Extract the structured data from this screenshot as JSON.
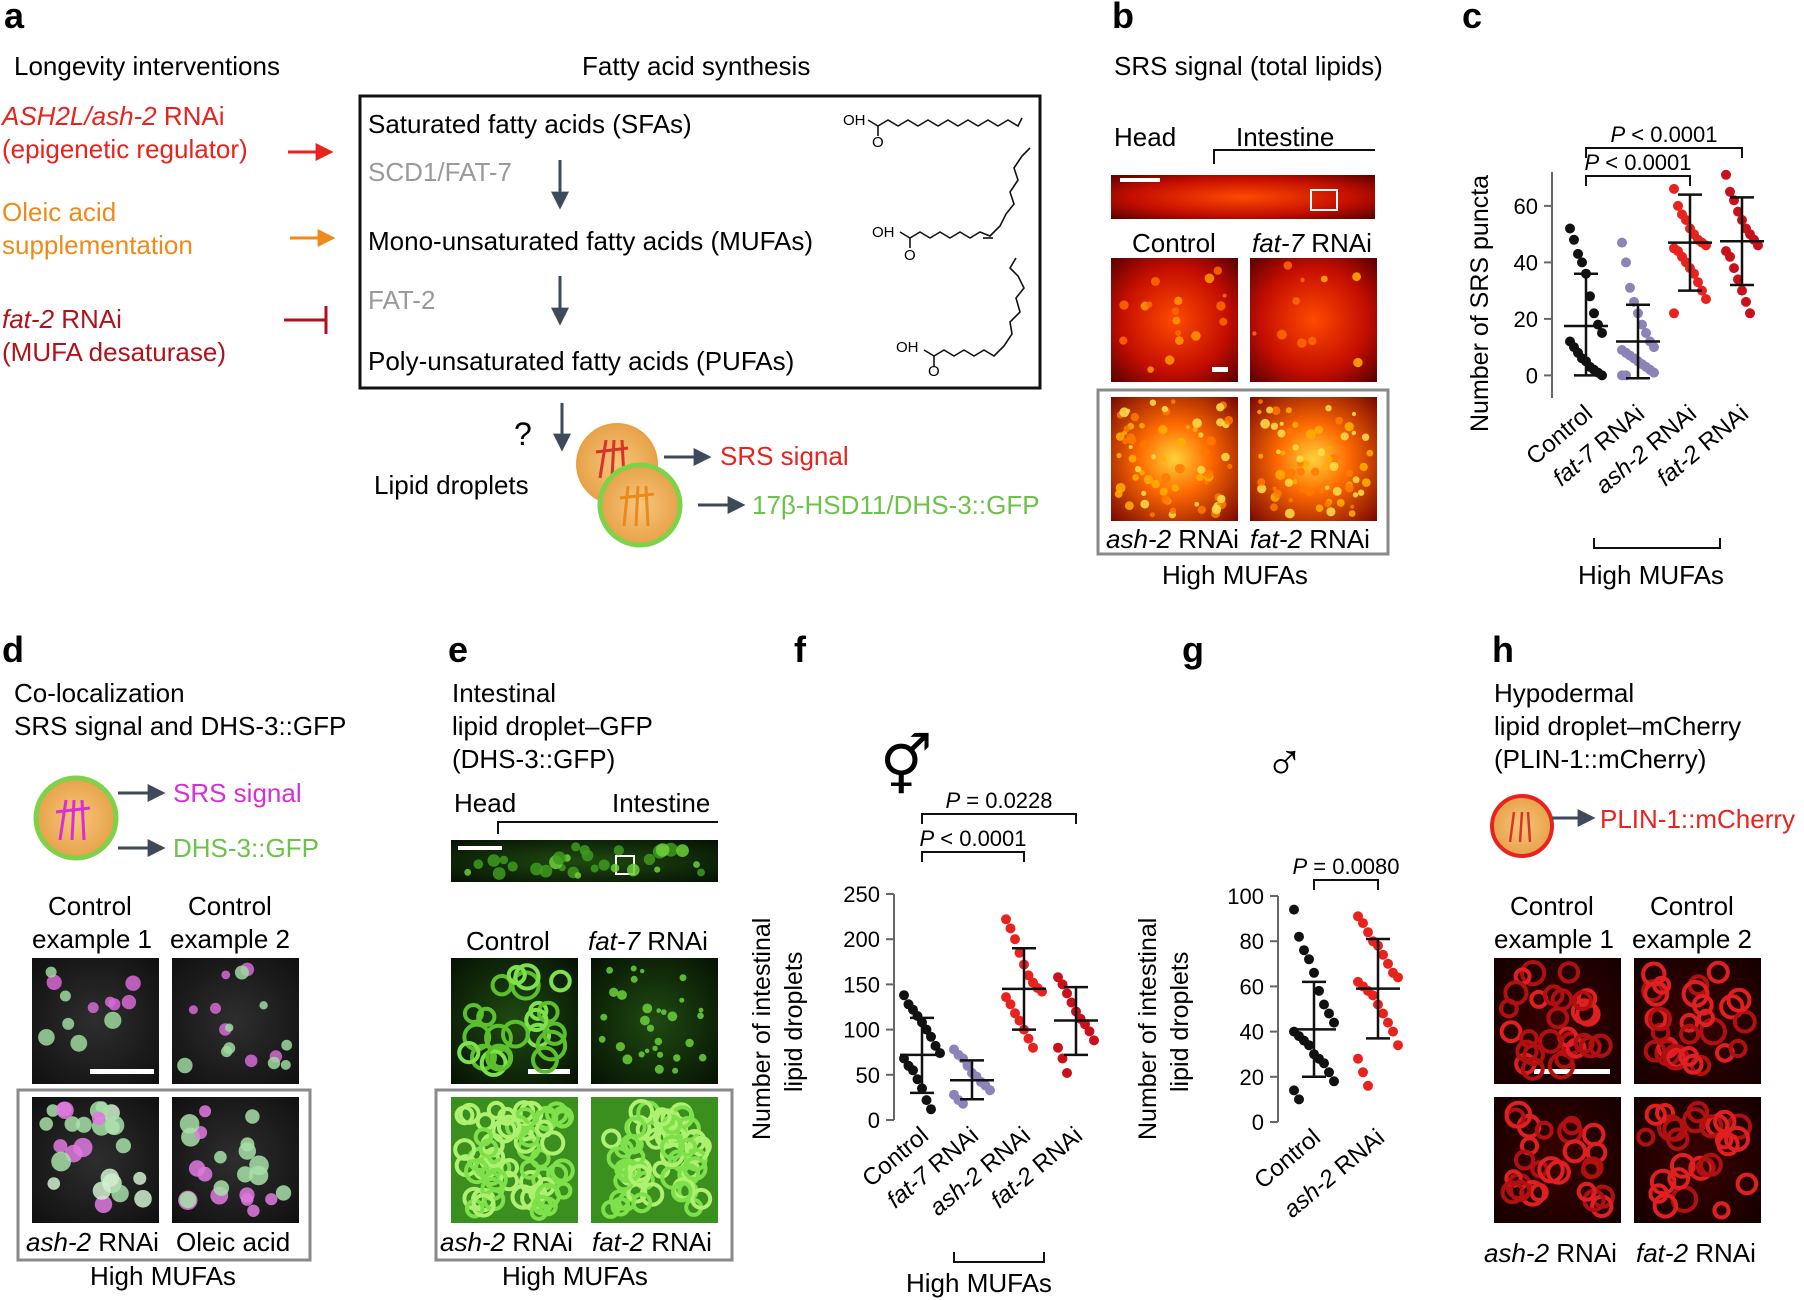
{
  "colors": {
    "red": "#e8231e",
    "orange": "#ef8a1a",
    "darkred": "#b0121b",
    "green": "#6cc24a",
    "gray": "#9a9a9a",
    "magenta": "#d62fd6",
    "purple": "#8c83b8",
    "black": "#111111"
  },
  "panel_a": {
    "label": "a",
    "heading_left": "Longevity interventions",
    "heading_box": "Fatty acid synthesis",
    "int1_gene": "ASH2L/ash-2",
    "int1_suffix": " RNAi",
    "int1_sub": "(epigenetic regulator)",
    "int2_line1": "Oleic acid",
    "int2_line2": "supplementation",
    "int3_gene": "fat-2",
    "int3_suffix": " RNAi",
    "int3_sub": "(MUFA desaturase)",
    "sfa": "Saturated fatty acids (SFAs)",
    "enzyme1": "SCD1/FAT-7",
    "mufa": "Mono-unsaturated fatty acids (MUFAs)",
    "enzyme2": "FAT-2",
    "pufa": "Poly-unsaturated fatty acids (PUFAs)",
    "oh": "OH",
    "o": "O",
    "question": "?",
    "lipid_droplets": "Lipid droplets",
    "srs": "SRS signal",
    "dhs": "17β-HSD11/DHS-3::GFP"
  },
  "panel_b": {
    "label": "b",
    "title": "SRS signal (total lipids)",
    "head": "Head",
    "intestine": "Intestine",
    "control": "Control",
    "fat7": "fat-7",
    "rnai": " RNAi",
    "ash2": "ash-2",
    "fat2": "fat-2",
    "high": "High MUFAs"
  },
  "panel_c": {
    "label": "c",
    "ylabel": "Number of SRS puncta",
    "p1": "P < 0.0001",
    "p2": "P < 0.0001",
    "yticks": [
      "0",
      "20",
      "40",
      "60"
    ],
    "xcats": [
      "Control",
      "fat-7 RNAi",
      "ash-2 RNAi",
      "fat-2 RNAi"
    ],
    "high": "High MUFAs"
  },
  "panel_d": {
    "label": "d",
    "title1": "Co-localization",
    "title2": "SRS signal and DHS-3::GFP",
    "srs": "SRS signal",
    "dhs": "DHS-3::GFP",
    "c1a": "Control",
    "c1b": "example 1",
    "c2a": "Control",
    "c2b": "example 2",
    "ash2": "ash-2",
    "rnai": " RNAi",
    "oleic": "Oleic acid",
    "high": "High MUFAs"
  },
  "panel_e": {
    "label": "e",
    "t1": "Intestinal",
    "t2": "lipid droplet–GFP",
    "t3": "(DHS-3::GFP)",
    "head": "Head",
    "intestine": "Intestine",
    "control": "Control",
    "fat7": "fat-7",
    "rnai": " RNAi",
    "ash2": "ash-2",
    "fat2": "fat-2",
    "high": "High MUFAs"
  },
  "panel_f": {
    "label": "f",
    "symbol": "⚥",
    "ylabel1": "Number of intestinal",
    "ylabel2": "lipid droplets",
    "p1": "P = 0.0228",
    "p2": "P < 0.0001",
    "yticks": [
      "0",
      "50",
      "100",
      "150",
      "200",
      "250"
    ],
    "xcats": [
      "Control",
      "fat-7 RNAi",
      "ash-2 RNAi",
      "fat-2 RNAi"
    ],
    "high": "High MUFAs"
  },
  "panel_g": {
    "label": "g",
    "symbol": "♂",
    "ylabel1": "Number of intestinal",
    "ylabel2": "lipid droplets",
    "p1": "P = 0.0080",
    "yticks": [
      "0",
      "20",
      "40",
      "60",
      "80",
      "100"
    ],
    "xcats": [
      "Control",
      "ash-2 RNAi"
    ]
  },
  "panel_h": {
    "label": "h",
    "t1": "Hypodermal",
    "t2": "lipid droplet–mCherry",
    "t3": "(PLIN-1::mCherry)",
    "plin": "PLIN-1::mCherry",
    "c1a": "Control",
    "c1b": "example 1",
    "c2a": "Control",
    "c2b": "example 2",
    "ash2": "ash-2",
    "fat2": "fat-2",
    "rnai": " RNAi"
  },
  "chart_data": [
    {
      "panel": "c",
      "type": "scatter",
      "ylabel": "Number of SRS puncta",
      "ylim": [
        -8,
        72
      ],
      "categories": [
        "Control",
        "fat-7 RNAi",
        "ash-2 RNAi",
        "fat-2 RNAi"
      ],
      "series": [
        {
          "values": [
            52,
            48,
            43,
            40,
            36,
            28,
            22,
            18,
            15,
            12,
            10,
            8,
            6,
            5,
            3,
            2,
            1,
            0
          ],
          "mean": 17.5,
          "sd_low": 0,
          "sd_high": 36,
          "color": "#111111"
        },
        {
          "values": [
            47,
            40,
            31,
            26,
            22,
            18,
            15,
            12,
            10,
            9,
            8,
            7,
            6,
            5,
            4,
            3,
            2,
            1,
            0,
            0
          ],
          "mean": 12,
          "sd_low": -1,
          "sd_high": 25,
          "color": "#8c83b8"
        },
        {
          "values": [
            66,
            60,
            57,
            55,
            52,
            50,
            48,
            47,
            46,
            45,
            44,
            42,
            40,
            38,
            36,
            33,
            30,
            27,
            22
          ],
          "mean": 47,
          "sd_low": 30,
          "sd_high": 64,
          "color": "#e8231e"
        },
        {
          "values": [
            71,
            65,
            62,
            58,
            55,
            52,
            50,
            48,
            46,
            44,
            42,
            38,
            34,
            30,
            26,
            22
          ],
          "mean": 47.5,
          "sd_low": 32,
          "sd_high": 63,
          "color": "#c8111b"
        }
      ]
    },
    {
      "panel": "f",
      "type": "scatter",
      "ylabel": "Number of intestinal lipid droplets",
      "ylim": [
        0,
        250
      ],
      "categories": [
        "Control",
        "fat-7 RNAi",
        "ash-2 RNAi",
        "fat-2 RNAi"
      ],
      "series": [
        {
          "values": [
            138,
            128,
            122,
            115,
            108,
            100,
            92,
            82,
            74,
            68,
            60,
            55,
            45,
            35,
            22,
            12
          ],
          "mean": 72,
          "sd_low": 30,
          "sd_high": 113,
          "color": "#111111"
        },
        {
          "values": [
            78,
            72,
            68,
            60,
            52,
            48,
            42,
            38,
            33,
            28,
            22,
            18
          ],
          "mean": 44,
          "sd_low": 23,
          "sd_high": 66,
          "color": "#8c83b8"
        },
        {
          "values": [
            222,
            212,
            200,
            185,
            172,
            160,
            152,
            146,
            142,
            136,
            128,
            118,
            110,
            100,
            90,
            80
          ],
          "mean": 145,
          "sd_low": 100,
          "sd_high": 190,
          "color": "#e8231e"
        },
        {
          "values": [
            158,
            150,
            140,
            130,
            120,
            112,
            106,
            98,
            88,
            80,
            68,
            52
          ],
          "mean": 110,
          "sd_low": 72,
          "sd_high": 147,
          "color": "#c8111b"
        }
      ]
    },
    {
      "panel": "g",
      "type": "scatter",
      "ylabel": "Number of intestinal lipid droplets",
      "ylim": [
        0,
        100
      ],
      "categories": [
        "Control",
        "ash-2 RNAi"
      ],
      "series": [
        {
          "values": [
            94,
            82,
            76,
            72,
            66,
            58,
            52,
            48,
            44,
            40,
            38,
            36,
            34,
            30,
            28,
            26,
            22,
            18,
            14,
            10
          ],
          "mean": 41,
          "sd_low": 20,
          "sd_high": 62,
          "color": "#111111"
        },
        {
          "values": [
            91,
            88,
            84,
            80,
            78,
            74,
            70,
            66,
            64,
            62,
            60,
            58,
            56,
            52,
            48,
            44,
            40,
            34,
            28,
            22,
            16
          ],
          "mean": 59,
          "sd_low": 37,
          "sd_high": 81,
          "color": "#e8231e"
        }
      ]
    }
  ]
}
